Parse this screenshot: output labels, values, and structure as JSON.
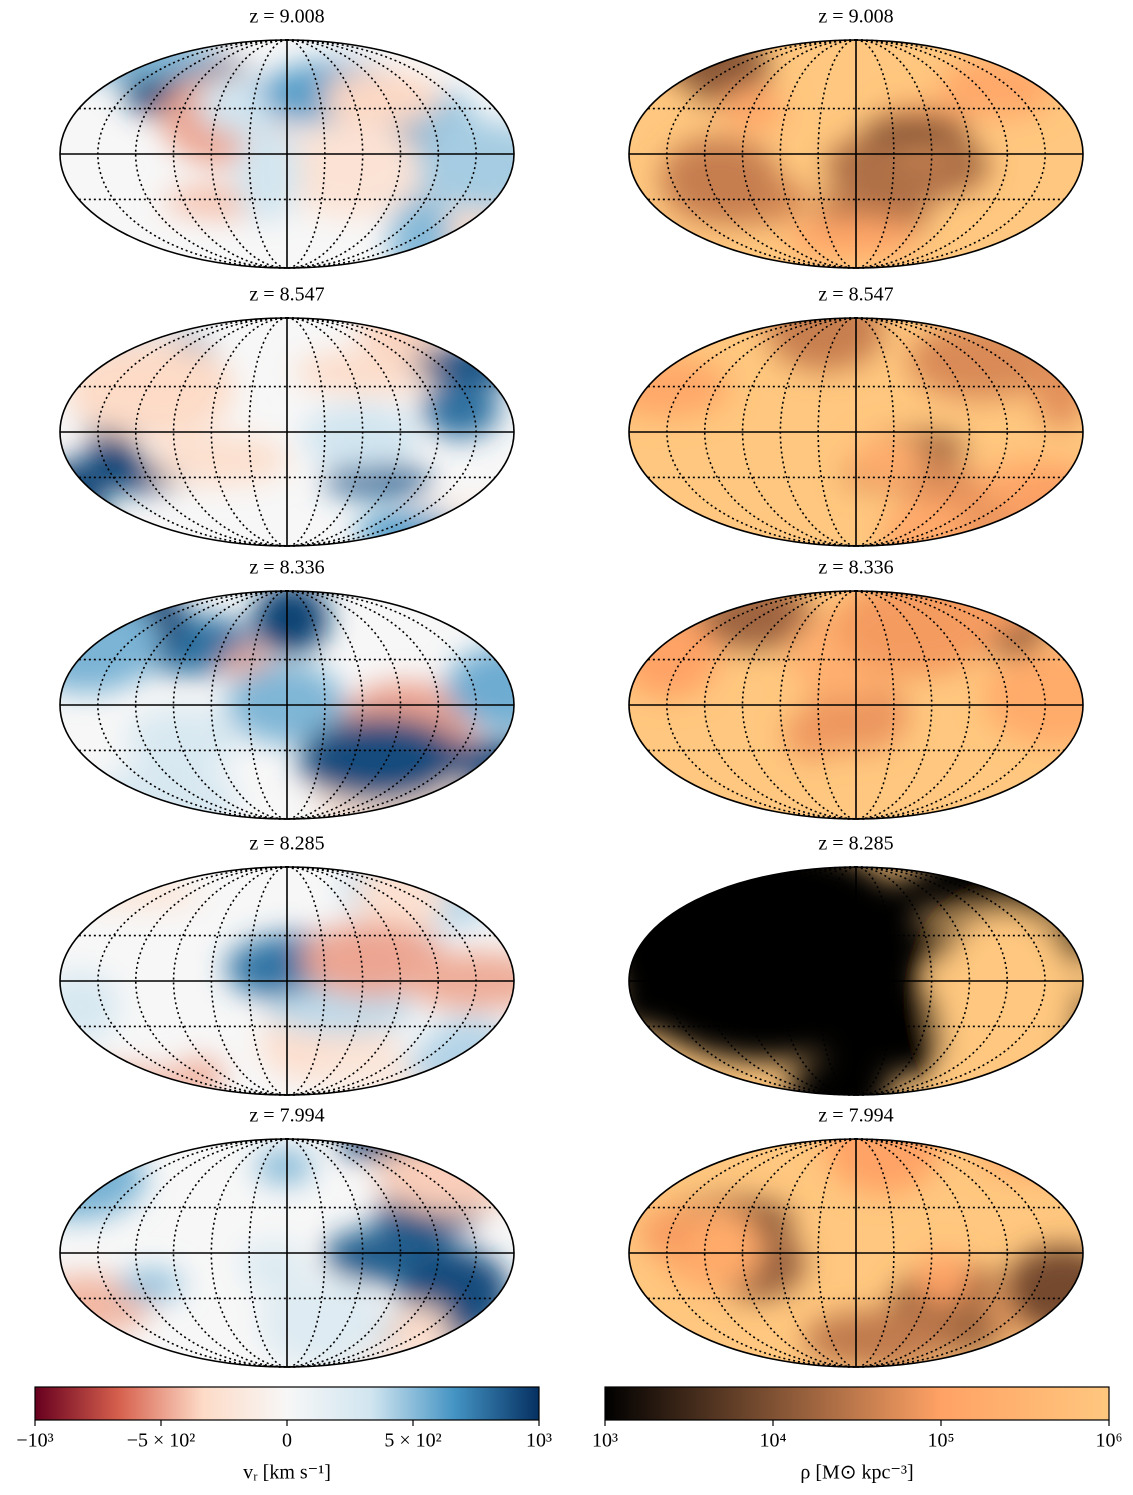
{
  "chart_data": [
    {
      "type": "mollweide",
      "titles": [
        "z = 9.008",
        "z = 8.547",
        "z = 8.336",
        "z = 8.285",
        "z = 7.994"
      ],
      "colorbar": {
        "label": "vᵣ [km s⁻¹]",
        "scale": "linear",
        "lim": [
          -1000,
          1000
        ],
        "ticks": [
          {
            "value": -1000,
            "label": "−10³"
          },
          {
            "value": -500,
            "label": "−5 × 10²"
          },
          0,
          {
            "value": 500,
            "label": "5 × 10²"
          },
          {
            "value": 1000,
            "label": "10³"
          }
        ],
        "colors": [
          "#67001f",
          "#d6604d",
          "#fddbc7",
          "#f7f7f7",
          "#d1e5f0",
          "#4393c3",
          "#053061"
        ]
      }
    },
    {
      "type": "mollweide",
      "titles": [
        "z = 9.008",
        "z = 8.547",
        "z = 8.336",
        "z = 8.285",
        "z = 7.994"
      ],
      "colorbar": {
        "label": "ρ [M⊙ kpc⁻³]",
        "scale": "log",
        "lim": [
          1000,
          1000000
        ],
        "ticks": [
          {
            "value": 1000,
            "label": "10³"
          },
          {
            "value": 10000,
            "label": "10⁴"
          },
          {
            "value": 100000,
            "label": "10⁵"
          },
          {
            "value": 1000000,
            "label": "10⁶"
          }
        ],
        "colors": [
          "#000000",
          "#7f5133",
          "#ffa265",
          "#ffc77f"
        ]
      }
    }
  ]
}
